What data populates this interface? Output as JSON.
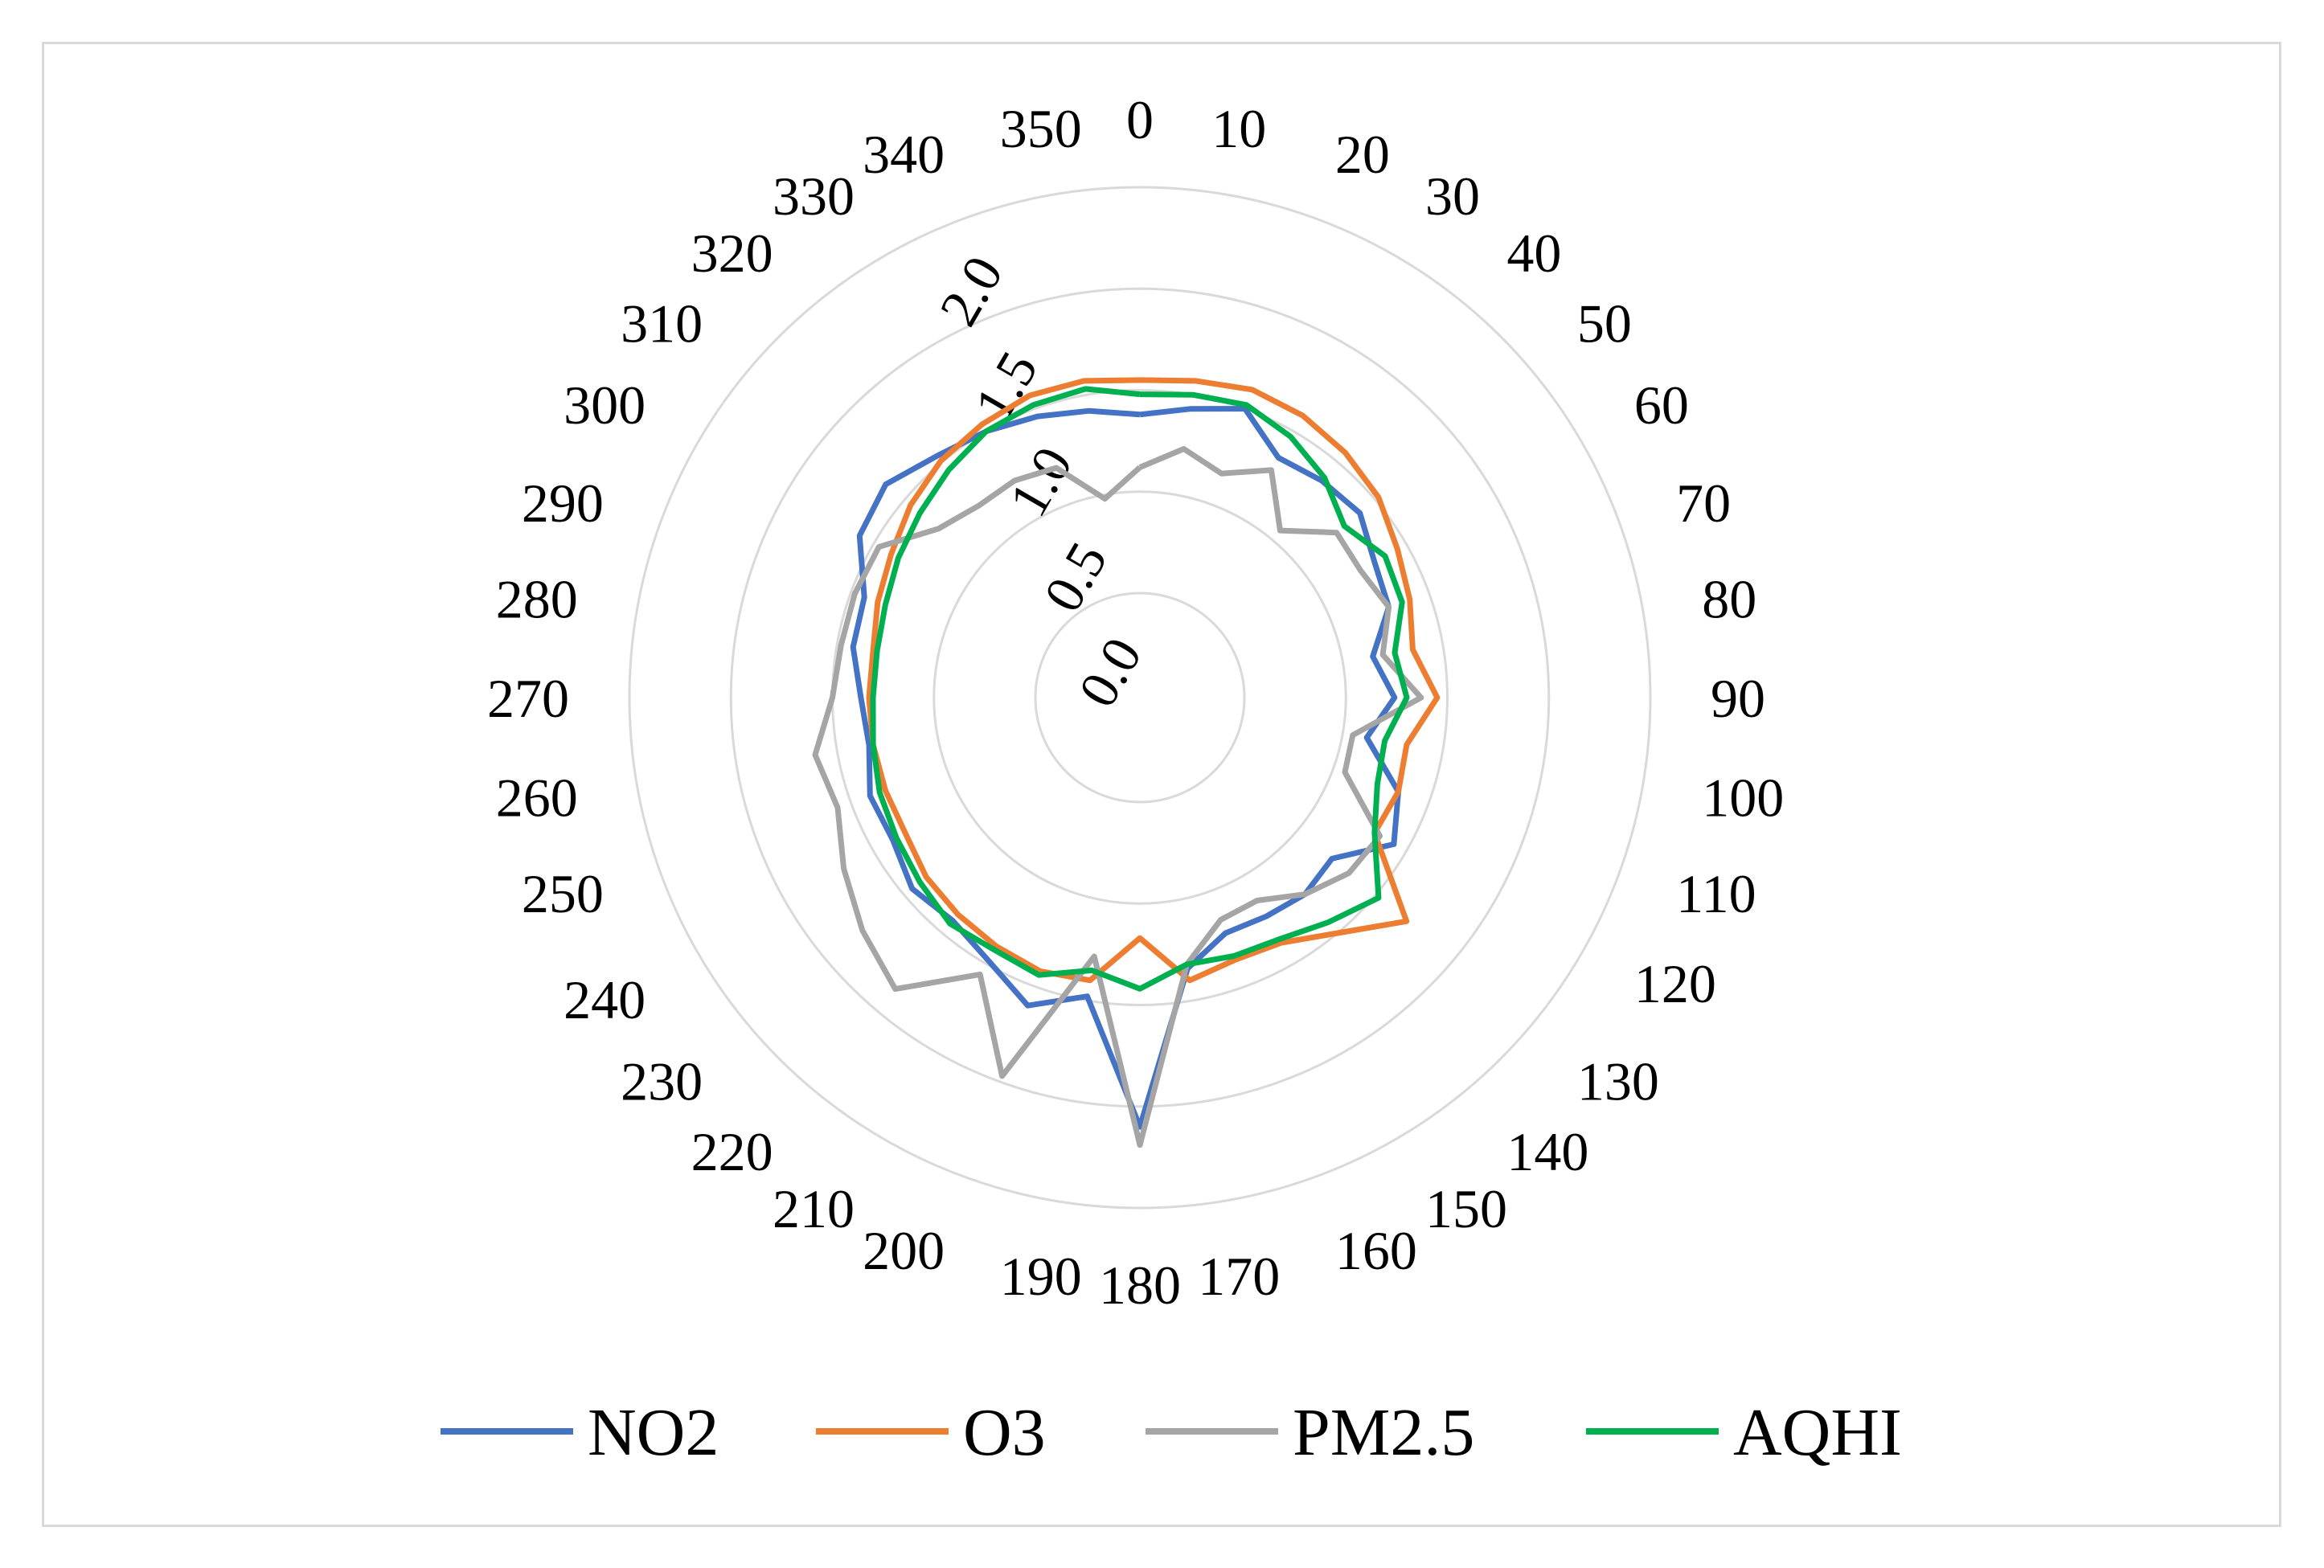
{
  "chart_data": {
    "type": "radar",
    "angles": [
      "0",
      "10",
      "20",
      "30",
      "40",
      "50",
      "60",
      "70",
      "80",
      "90",
      "100",
      "110",
      "120",
      "130",
      "140",
      "150",
      "160",
      "170",
      "180",
      "190",
      "200",
      "210",
      "220",
      "230",
      "240",
      "250",
      "260",
      "270",
      "280",
      "290",
      "300",
      "310",
      "320",
      "330",
      "340",
      "350"
    ],
    "radial_ticks": [
      "0.0",
      "0.5",
      "1.0",
      "1.5",
      "2.0"
    ],
    "rlim": [
      0,
      2.0
    ],
    "grid": true,
    "legend_position": "bottom",
    "series": [
      {
        "name": "NO2",
        "color": "#4472c4",
        "values": [
          0.88,
          0.93,
          1.0,
          0.85,
          0.88,
          0.9,
          0.82,
          0.79,
          0.65,
          0.74,
          0.62,
          0.84,
          0.93,
          0.72,
          0.75,
          0.73,
          0.72,
          0.84,
          1.6,
          0.98,
          1.1,
          0.98,
          0.92,
          0.95,
          0.89,
          0.9,
          0.84,
          0.86,
          0.92,
          0.93,
          1.08,
          1.12,
          1.04,
          1.0,
          0.96,
          0.92
        ]
      },
      {
        "name": "O3",
        "color": "#ed7d31",
        "values": [
          1.05,
          1.07,
          1.1,
          1.09,
          1.06,
          1.02,
          0.95,
          0.9,
          0.85,
          0.95,
          0.82,
          0.84,
          0.82,
          1.2,
          1.0,
          0.88,
          0.86,
          0.9,
          0.67,
          0.9,
          0.92,
          0.9,
          0.88,
          0.86,
          0.82,
          0.82,
          0.82,
          0.82,
          0.82,
          0.86,
          0.9,
          0.96,
          1.01,
          1.04,
          1.07,
          1.07
        ]
      },
      {
        "name": "PM2.5",
        "color": "#a5a5a5",
        "values": [
          0.62,
          0.73,
          0.66,
          0.78,
          0.56,
          0.75,
          0.74,
          0.79,
          0.7,
          0.87,
          0.55,
          0.56,
          0.85,
          0.83,
          0.75,
          0.64,
          0.65,
          0.82,
          1.69,
          0.78,
          1.47,
          1.06,
          1.36,
          1.27,
          1.17,
          1.07,
          1.11,
          1.0,
          0.98,
          0.98,
          0.97,
          0.78,
          0.72,
          0.72,
          0.69,
          0.48
        ]
      },
      {
        "name": "AQHI",
        "color": "#00b050",
        "values": [
          0.98,
          1.0,
          1.02,
          0.97,
          0.9,
          0.8,
          0.88,
          0.86,
          0.76,
          0.8,
          0.71,
          0.73,
          0.82,
          1.02,
          0.93,
          0.86,
          0.84,
          0.82,
          0.92,
          0.85,
          0.94,
          0.92,
          0.94,
          0.9,
          0.87,
          0.85,
          0.82,
          0.8,
          0.8,
          0.82,
          0.86,
          0.9,
          0.95,
          1.0,
          1.02,
          1.03
        ]
      }
    ]
  }
}
